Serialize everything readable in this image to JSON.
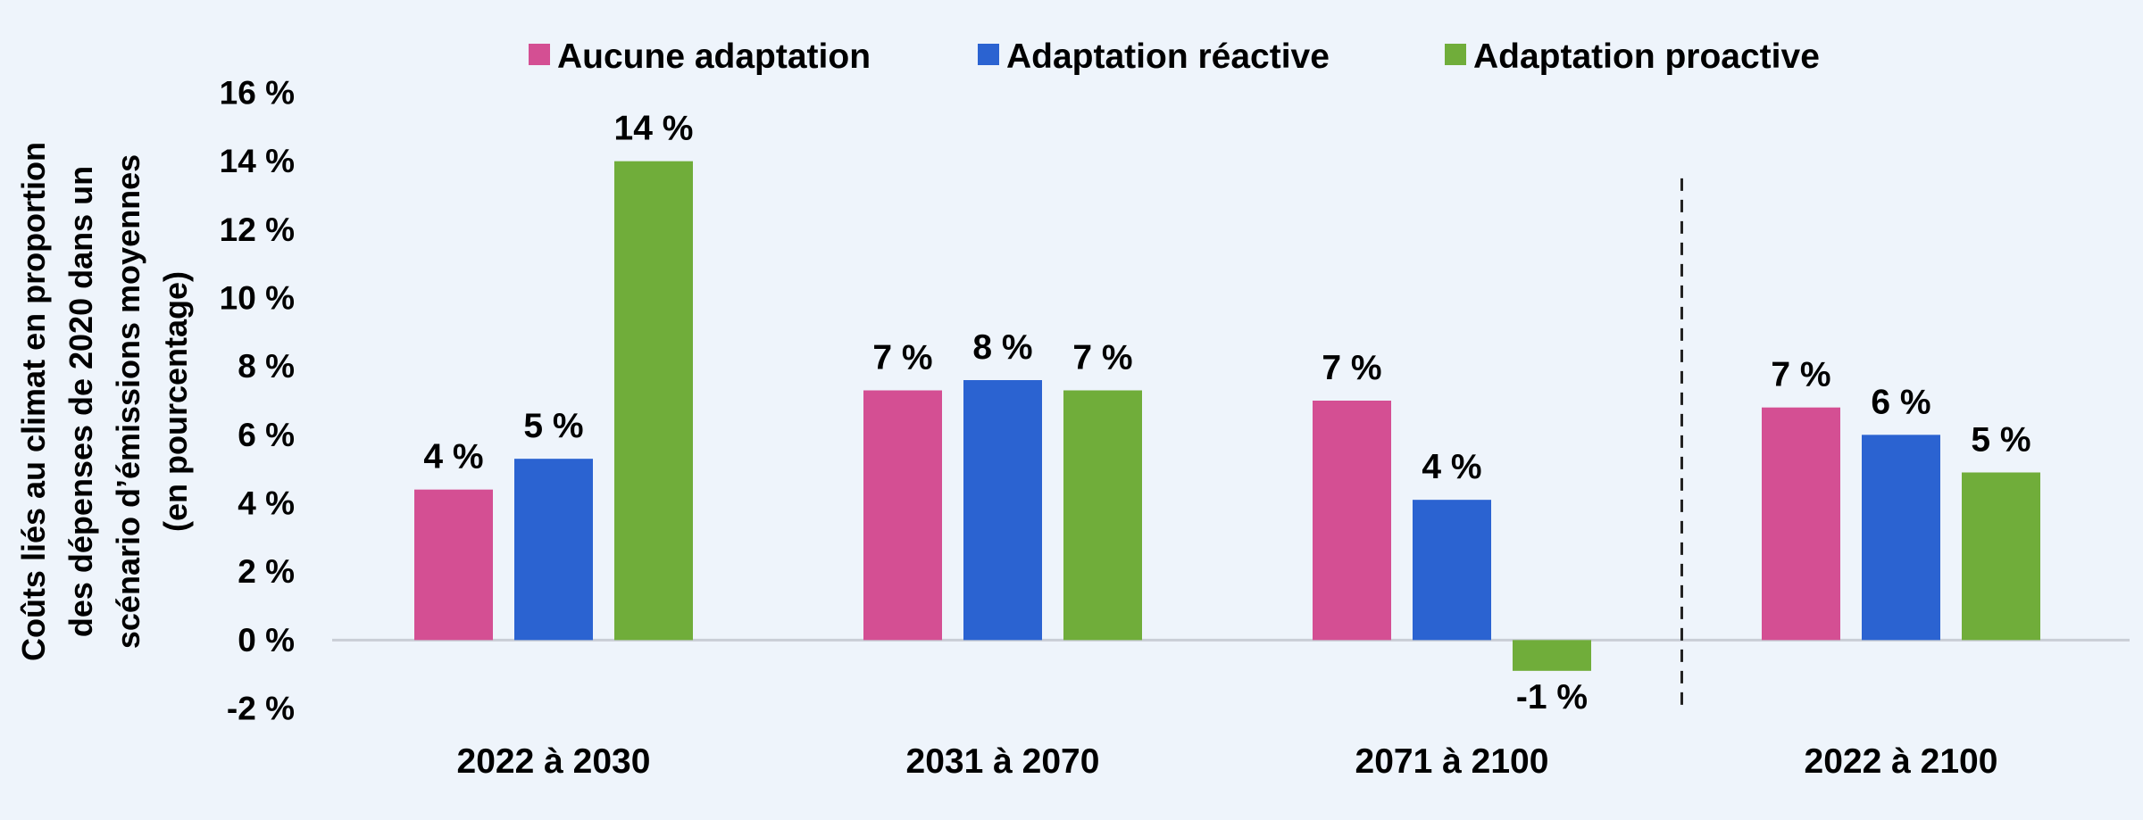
{
  "chart_data": {
    "type": "bar",
    "ylabel_lines": [
      "Coûts liés au climat en proportion",
      "des dépenses de 2020 dans un",
      "scénario d’émissions moyennes",
      "(en pourcentage)"
    ],
    "ylim": [
      -2,
      16
    ],
    "y_ticks": [
      -2,
      0,
      2,
      4,
      6,
      8,
      10,
      12,
      14,
      16
    ],
    "y_tick_labels": [
      "-2 %",
      "0 %",
      "2 %",
      "4 %",
      "6 %",
      "8 %",
      "10 %",
      "12 %",
      "14 %",
      "16 %"
    ],
    "grid": false,
    "legend_position": "top",
    "categories": [
      "2022 à 2030",
      "2031 à 2070",
      "2071 à 2100",
      "2022 à 2100"
    ],
    "separator_before_category": 3,
    "series": [
      {
        "name": "Aucune adaptation",
        "color": "#d44f93",
        "values": [
          4.4,
          7.3,
          7.0,
          6.8
        ],
        "labels": [
          "4 %",
          "7 %",
          "7 %",
          "7 %"
        ]
      },
      {
        "name": "Adaptation réactive",
        "color": "#2b63d1",
        "values": [
          5.3,
          7.6,
          4.1,
          6.0
        ],
        "labels": [
          "5 %",
          "8 %",
          "4 %",
          "6 %"
        ]
      },
      {
        "name": "Adaptation proactive",
        "color": "#70ad3a",
        "values": [
          14.0,
          7.3,
          -0.9,
          4.9
        ],
        "labels": [
          "14 %",
          "7 %",
          "-1 %",
          "5 %"
        ]
      }
    ]
  }
}
